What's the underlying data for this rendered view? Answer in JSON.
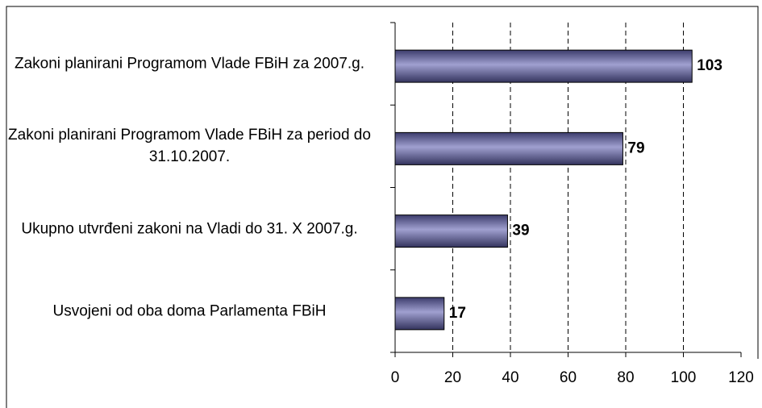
{
  "chart_data": {
    "type": "bar",
    "orientation": "horizontal",
    "categories": [
      "Zakoni planirani Programom Vlade FBiH za 2007.g.",
      "Zakoni planirani Programom Vlade FBiH za period do 31.10.2007.",
      "Ukupno utvrđeni zakoni na Vladi do 31. X 2007.g.",
      "Usvojeni od oba doma Parlamenta FBiH"
    ],
    "values": [
      103,
      79,
      39,
      17
    ],
    "color": "#5a5a90",
    "xlim": [
      0,
      120
    ],
    "xticks": [
      0,
      20,
      40,
      60,
      80,
      100,
      120
    ],
    "grid": true
  }
}
